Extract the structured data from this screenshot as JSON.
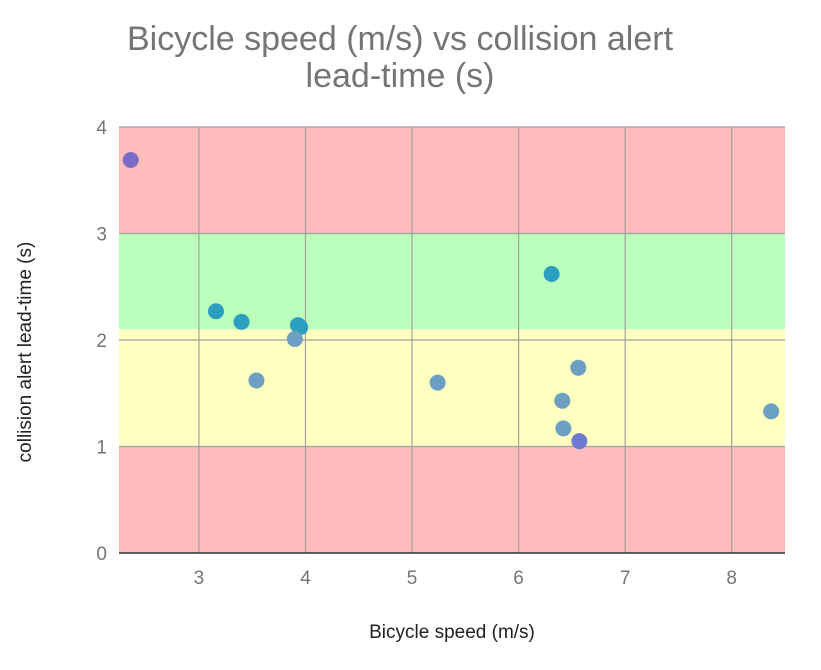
{
  "chart_data": {
    "type": "scatter",
    "title_lines": [
      "Bicycle speed (m/s) vs collision alert",
      "lead-time (s)"
    ],
    "xlabel": "Bicycle speed (m/s)",
    "ylabel": "collision alert lead-time (s)",
    "xlim": [
      2.25,
      8.5
    ],
    "ylim": [
      0,
      4
    ],
    "xticks": [
      3,
      4,
      5,
      6,
      7,
      8
    ],
    "yticks": [
      0,
      1,
      2,
      3,
      4
    ],
    "grid": true,
    "bands": [
      {
        "y0": 0,
        "y1": 1.0,
        "color": "#ffbcbc"
      },
      {
        "y0": 1.0,
        "y1": 2.1,
        "color": "#ffffc0"
      },
      {
        "y0": 2.1,
        "y1": 3.0,
        "color": "#baffbc"
      },
      {
        "y0": 3.0,
        "y1": 4.0,
        "color": "#ffbcbc"
      }
    ],
    "points": [
      {
        "x": 2.36,
        "y": 3.69,
        "color": "#7a6bc9"
      },
      {
        "x": 3.16,
        "y": 2.27,
        "color": "#2a9fbf"
      },
      {
        "x": 3.4,
        "y": 2.17,
        "color": "#2a9fbf"
      },
      {
        "x": 3.93,
        "y": 2.14,
        "color": "#2a9fbf"
      },
      {
        "x": 3.95,
        "y": 2.12,
        "color": "#2a9fbf"
      },
      {
        "x": 3.9,
        "y": 2.01,
        "color": "#6c9fc2"
      },
      {
        "x": 3.54,
        "y": 1.62,
        "color": "#6c9fc2"
      },
      {
        "x": 5.24,
        "y": 1.6,
        "color": "#6c9fc2"
      },
      {
        "x": 6.31,
        "y": 2.62,
        "color": "#2a9fbf"
      },
      {
        "x": 6.56,
        "y": 1.74,
        "color": "#6c9fc2"
      },
      {
        "x": 6.41,
        "y": 1.43,
        "color": "#6c9fc2"
      },
      {
        "x": 6.42,
        "y": 1.17,
        "color": "#6c9fc2"
      },
      {
        "x": 6.57,
        "y": 1.05,
        "color": "#6f7ad0"
      },
      {
        "x": 8.37,
        "y": 1.33,
        "color": "#6c9fc2"
      }
    ]
  },
  "colors": {
    "text": "#757575",
    "axis_label": "#222222",
    "grid": "#a0a0a0",
    "axis_line": "#333333"
  }
}
